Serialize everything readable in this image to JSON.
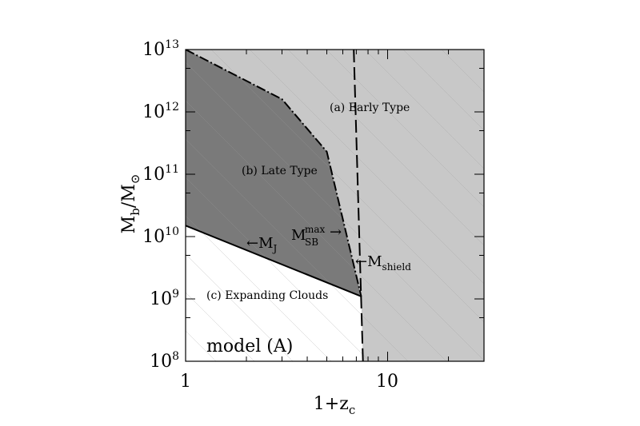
{
  "chart_data": {
    "type": "area",
    "title": "",
    "xlabel": "1+z",
    "xlabel_sub": "c",
    "ylabel": "M",
    "ylabel_sub": "b",
    "ylabel_sep": "/M",
    "ylabel_sub2": "⊙",
    "xscale": "log",
    "yscale": "log",
    "xlim": [
      1,
      30
    ],
    "ylim": [
      100000000.0,
      10000000000000.0
    ],
    "x_ticks": [
      {
        "value": 1,
        "label": "1"
      },
      {
        "value": 10,
        "label": "10"
      }
    ],
    "y_ticks": [
      {
        "value": 100000000.0,
        "base": "10",
        "exp": "8"
      },
      {
        "value": 1000000000.0,
        "base": "10",
        "exp": "9"
      },
      {
        "value": 10000000000.0,
        "base": "10",
        "exp": "10"
      },
      {
        "value": 100000000000.0,
        "base": "10",
        "exp": "11"
      },
      {
        "value": 1000000000000.0,
        "base": "10",
        "exp": "12"
      },
      {
        "value": 10000000000000.0,
        "base": "10",
        "exp": "13"
      }
    ],
    "series": [
      {
        "name": "M_J",
        "style": "solid",
        "points": [
          [
            1,
            15000000000.0
          ],
          [
            7.4,
            1100000000.0
          ]
        ]
      },
      {
        "name": "M_SB^max",
        "style": "dash-dot",
        "points": [
          [
            1,
            10000000000000.0
          ],
          [
            3,
            1600000000000.0
          ],
          [
            5,
            230000000000.0
          ],
          [
            7.4,
            1100000000.0
          ]
        ]
      },
      {
        "name": "M_shield",
        "style": "dashed",
        "points": [
          [
            6.8,
            10000000000000.0
          ],
          [
            7.55,
            100000000.0
          ]
        ]
      }
    ],
    "regions": [
      {
        "label": "(a) Early Type",
        "fill": "#c8c8c8"
      },
      {
        "label": "(b) Late Type",
        "fill": "#7a7a7a"
      },
      {
        "label": "(c) Expanding Clouds",
        "fill": "#ffffff"
      }
    ],
    "annotations": {
      "mj_arrow": "←",
      "mj_main": "M",
      "mj_sub": "J",
      "msb_main": "M",
      "msb_sup": "max",
      "msb_sub": "SB",
      "msb_arrow": "→",
      "ms_arrow": "←",
      "ms_main": "M",
      "ms_sub": "shield",
      "model": "model (A)"
    },
    "grid": false,
    "legend": "none"
  }
}
